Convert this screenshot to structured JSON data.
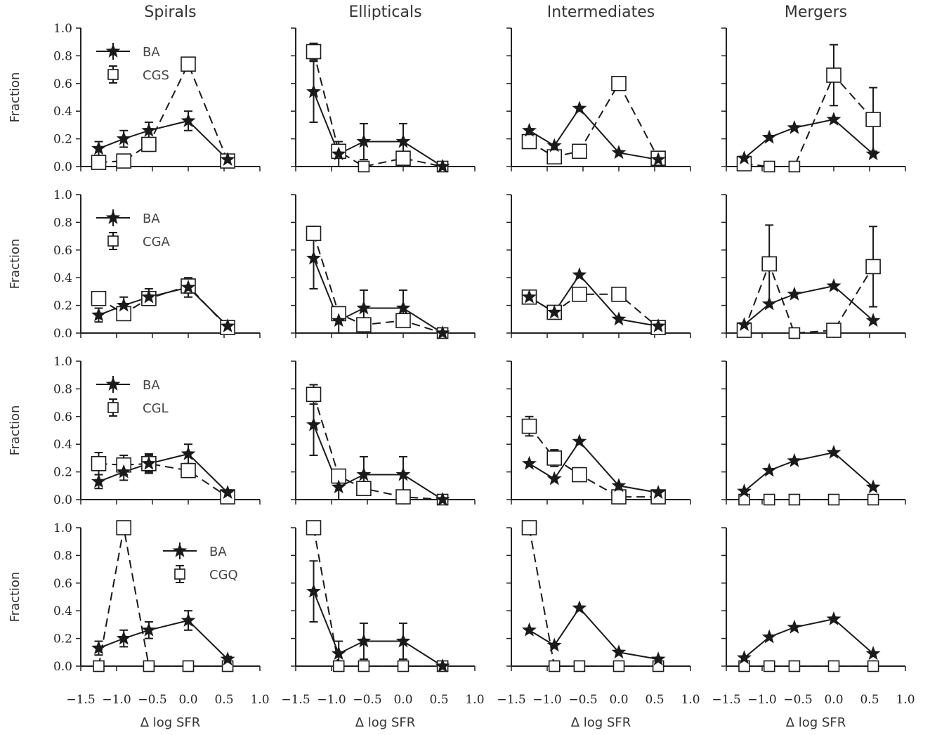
{
  "figure": {
    "col_titles": [
      "Spirals",
      "Ellipticals",
      "Intermediates",
      "Mergers"
    ],
    "ylabel": "Fraction",
    "xlabel": "Δ log SFR",
    "xticks": [
      "−1.5",
      "−1.0",
      "−0.5",
      "0.0",
      "0.5",
      "1.0"
    ],
    "yticks": [
      "0.0",
      "0.2",
      "0.4",
      "0.6",
      "0.8",
      "1.0"
    ]
  },
  "chart_data": {
    "type": "line",
    "title": "",
    "xlabel": "Δ log SFR",
    "ylabel": "Fraction",
    "xlim": [
      -1.5,
      1.0
    ],
    "ylim": [
      0.0,
      1.0
    ],
    "grid": false,
    "x": [
      -1.25,
      -0.9,
      -0.55,
      0.0,
      0.55
    ],
    "ba": {
      "name": "BA",
      "Spirals": {
        "y": [
          0.13,
          0.2,
          0.26,
          0.33,
          0.05
        ],
        "err": [
          0.05,
          0.06,
          0.06,
          0.07,
          0.02
        ]
      },
      "Ellipticals": {
        "y": [
          0.54,
          0.09,
          0.18,
          0.18,
          0.0
        ],
        "err": [
          0.22,
          0.09,
          0.13,
          0.13,
          0.0
        ]
      },
      "Intermediates": {
        "y": [
          0.26,
          0.15,
          0.42,
          0.1,
          0.05
        ],
        "err": [
          0.0,
          0.0,
          0.0,
          0.0,
          0.0
        ]
      },
      "Mergers": {
        "y": [
          0.06,
          0.21,
          0.28,
          0.34,
          0.09
        ],
        "err": [
          0.0,
          0.0,
          0.0,
          0.0,
          0.0
        ]
      }
    },
    "rows": [
      {
        "comparison": "CGS",
        "legend_position": "upper-left",
        "Spirals": {
          "y": [
            0.03,
            0.04,
            0.16,
            0.74,
            0.04
          ],
          "err": [
            0,
            0,
            0,
            0,
            0
          ]
        },
        "Ellipticals": {
          "y": [
            0.83,
            0.11,
            0.0,
            0.06,
            0.0
          ],
          "err": [
            0.06,
            0,
            0,
            0,
            0
          ]
        },
        "Intermediates": {
          "y": [
            0.18,
            0.07,
            0.11,
            0.6,
            0.06
          ],
          "err": [
            0,
            0,
            0,
            0,
            0
          ]
        },
        "Mergers": {
          "y": [
            0.02,
            0.0,
            0.0,
            0.66,
            0.34
          ],
          "err": [
            0,
            0,
            0,
            0.22,
            0.23
          ]
        }
      },
      {
        "comparison": "CGA",
        "legend_position": "upper-left",
        "Spirals": {
          "y": [
            0.25,
            0.14,
            0.25,
            0.34,
            0.04
          ],
          "err": [
            0,
            0,
            0,
            0.05,
            0
          ]
        },
        "Ellipticals": {
          "y": [
            0.72,
            0.14,
            0.06,
            0.09,
            0.0
          ],
          "err": [
            0.05,
            0,
            0,
            0,
            0
          ]
        },
        "Intermediates": {
          "y": [
            0.26,
            0.15,
            0.28,
            0.28,
            0.04
          ],
          "err": [
            0,
            0,
            0,
            0,
            0
          ]
        },
        "Mergers": {
          "y": [
            0.02,
            0.5,
            0.0,
            0.02,
            0.48
          ],
          "err": [
            0,
            0.28,
            0,
            0,
            0.29
          ]
        }
      },
      {
        "comparison": "CGL",
        "legend_position": "upper-left",
        "Spirals": {
          "y": [
            0.26,
            0.25,
            0.26,
            0.21,
            0.02
          ],
          "err": [
            0.08,
            0.07,
            0.07,
            0,
            0
          ]
        },
        "Ellipticals": {
          "y": [
            0.76,
            0.17,
            0.08,
            0.02,
            0.0
          ],
          "err": [
            0.07,
            0,
            0,
            0,
            0
          ]
        },
        "Intermediates": {
          "y": [
            0.53,
            0.3,
            0.18,
            0.02,
            0.02
          ],
          "err": [
            0.07,
            0.06,
            0,
            0,
            0
          ]
        },
        "Mergers": {
          "y": [
            0.0,
            0.0,
            0.0,
            0.0,
            0.0
          ],
          "err": [
            0,
            0,
            0,
            0,
            0
          ]
        }
      },
      {
        "comparison": "CGQ",
        "legend_position": "upper-center",
        "Spirals": {
          "y": [
            0.0,
            1.0,
            0.0,
            0.0,
            0.0
          ],
          "err": [
            0,
            0,
            0,
            0,
            0
          ]
        },
        "Ellipticals": {
          "y": [
            1.0,
            0.0,
            0.0,
            0.0,
            0.0
          ],
          "err": [
            0,
            0,
            0,
            0,
            0
          ]
        },
        "Intermediates": {
          "y": [
            1.0,
            0.0,
            0.0,
            0.0,
            0.0
          ],
          "err": [
            0,
            0,
            0,
            0,
            0
          ]
        },
        "Mergers": {
          "y": [
            0.0,
            0.0,
            0.0,
            0.0,
            0.0
          ],
          "err": [
            0,
            0,
            0,
            0,
            0
          ]
        }
      }
    ]
  }
}
